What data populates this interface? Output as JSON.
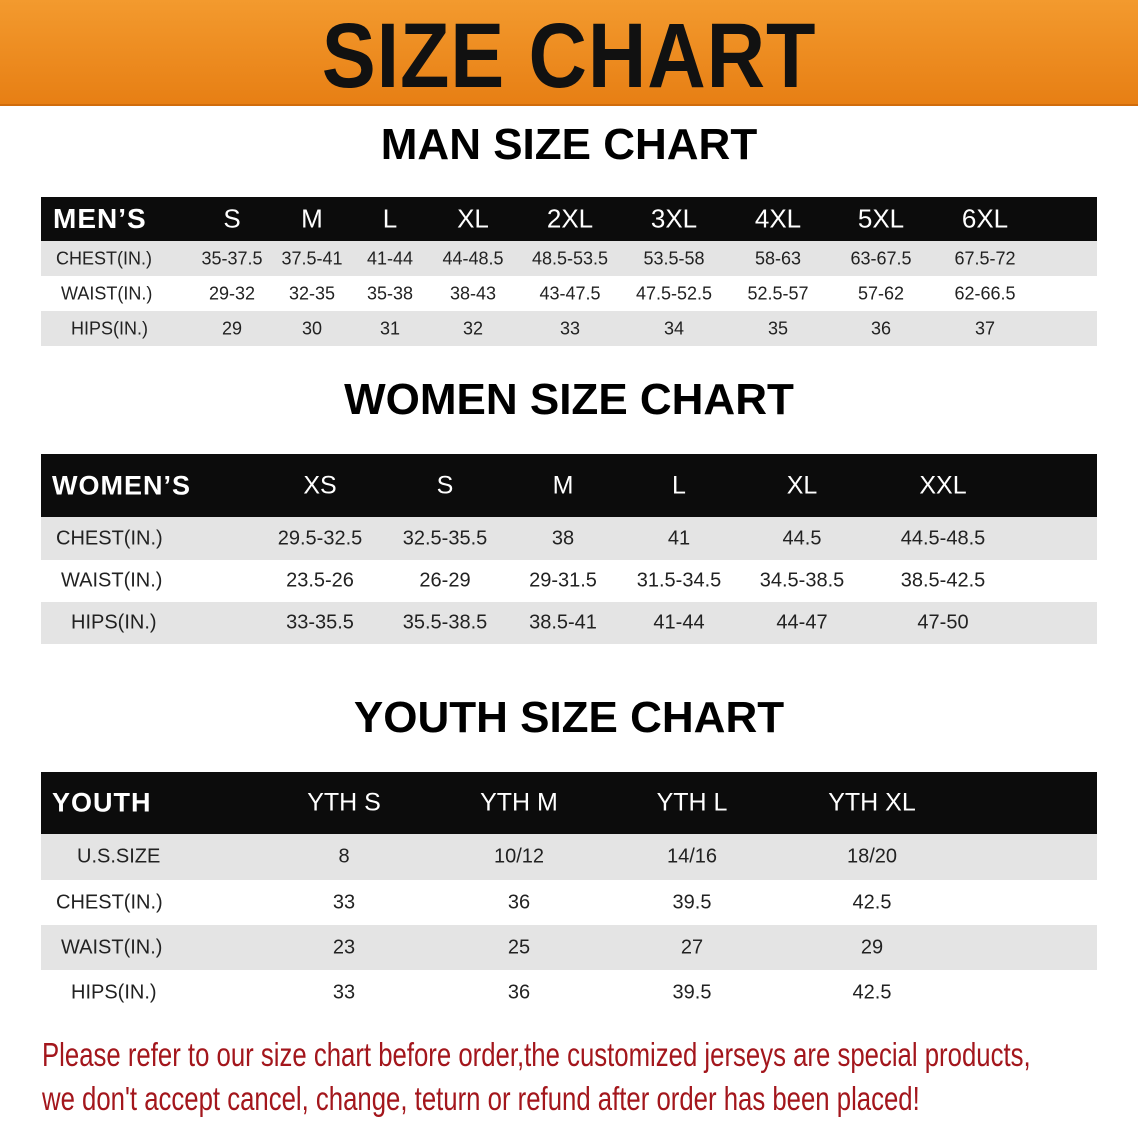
{
  "banner": {
    "title": "SIZE CHART",
    "color": "#ee8a1f"
  },
  "men": {
    "title": "MAN SIZE CHART",
    "header": "MEN’S",
    "sizes": [
      "S",
      "M",
      "L",
      "XL",
      "2XL",
      "3XL",
      "4XL",
      "5XL",
      "6XL"
    ],
    "rows": [
      {
        "label": "CHEST(IN.)",
        "values": [
          "35-37.5",
          "37.5-41",
          "41-44",
          "44-48.5",
          "48.5-53.5",
          "53.5-58",
          "58-63",
          "63-67.5",
          "67.5-72"
        ]
      },
      {
        "label": "WAIST(IN.)",
        "values": [
          "29-32",
          "32-35",
          "35-38",
          "38-43",
          "43-47.5",
          "47.5-52.5",
          "52.5-57",
          "57-62",
          "62-66.5"
        ]
      },
      {
        "label": "HIPS(IN.)",
        "values": [
          "29",
          "30",
          "31",
          "32",
          "33",
          "34",
          "35",
          "36",
          "37"
        ]
      }
    ]
  },
  "women": {
    "title": "WOMEN SIZE CHART",
    "header": "WOMEN’S",
    "sizes": [
      "XS",
      "S",
      "M",
      "L",
      "XL",
      "XXL"
    ],
    "rows": [
      {
        "label": "CHEST(IN.)",
        "values": [
          "29.5-32.5",
          "32.5-35.5",
          "38",
          "41",
          "44.5",
          "44.5-48.5"
        ]
      },
      {
        "label": "WAIST(IN.)",
        "values": [
          "23.5-26",
          "26-29",
          "29-31.5",
          "31.5-34.5",
          "34.5-38.5",
          "38.5-42.5"
        ]
      },
      {
        "label": "HIPS(IN.)",
        "values": [
          "33-35.5",
          "35.5-38.5",
          "38.5-41",
          "41-44",
          "44-47",
          "47-50"
        ]
      }
    ]
  },
  "youth": {
    "title": "YOUTH SIZE CHART",
    "header": "YOUTH",
    "sizes": [
      "YTH S",
      "YTH M",
      "YTH L",
      "YTH XL"
    ],
    "rows": [
      {
        "label": "U.S.SIZE",
        "values": [
          "8",
          "10/12",
          "14/16",
          "18/20"
        ]
      },
      {
        "label": "CHEST(IN.)",
        "values": [
          "33",
          "36",
          "39.5",
          "42.5"
        ]
      },
      {
        "label": "WAIST(IN.)",
        "values": [
          "23",
          "25",
          "27",
          "29"
        ]
      },
      {
        "label": "HIPS(IN.)",
        "values": [
          "33",
          "36",
          "39.5",
          "42.5"
        ]
      }
    ]
  },
  "notice": {
    "line1": "Please refer to our size chart before order,the customized jerseys are special products,",
    "line2": "we don't accept cancel, change, teturn or refund after order has been placed!",
    "color": "#a3161c"
  }
}
